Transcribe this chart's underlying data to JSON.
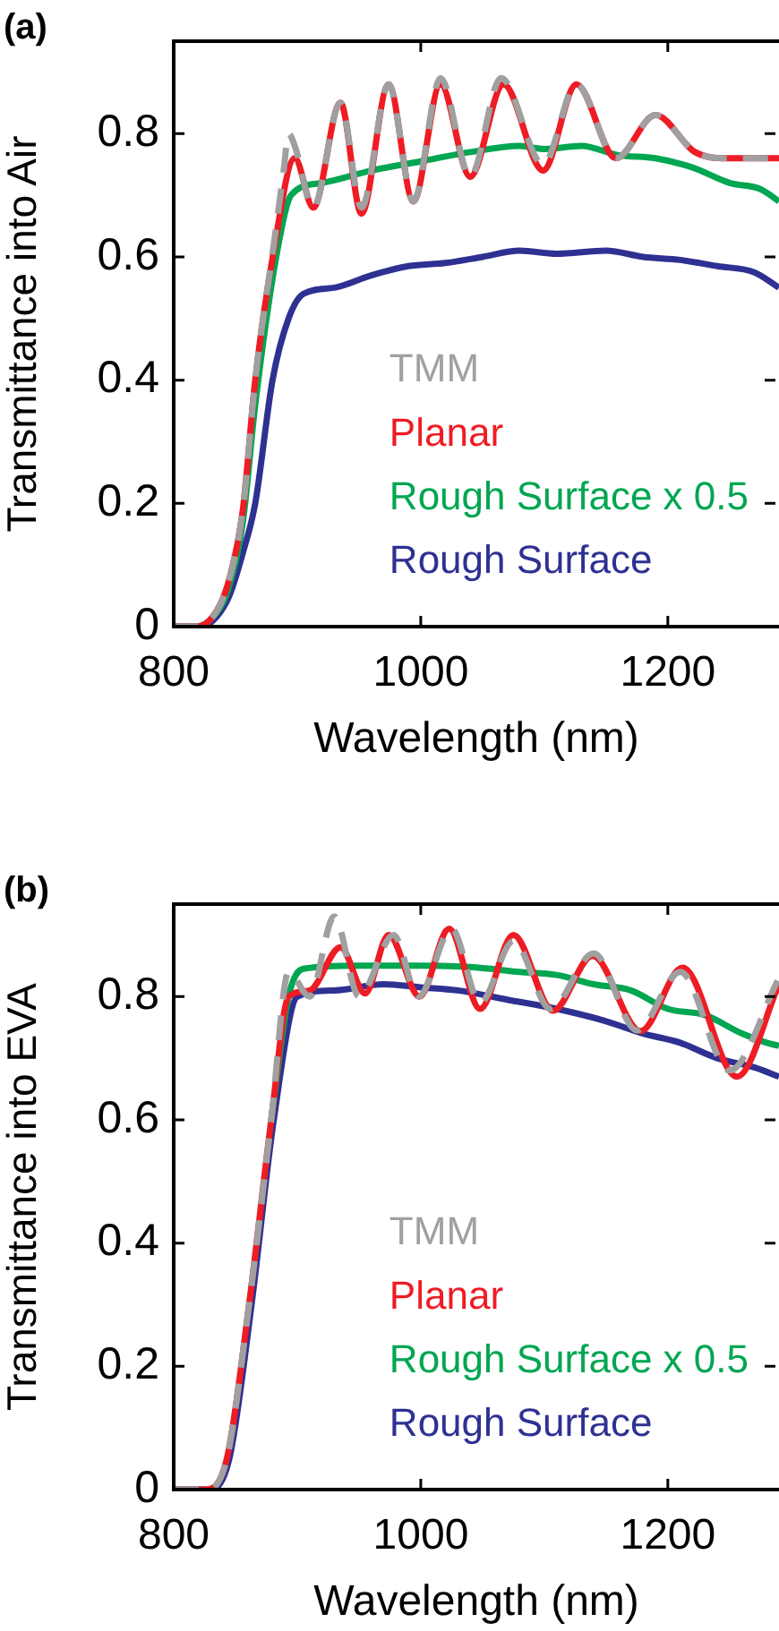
{
  "chart_data": [
    {
      "type": "line",
      "title": "(a)",
      "xlabel": "Wavelength (nm)",
      "ylabel": "Transmittance into Air",
      "xlim": [
        800,
        1290
      ],
      "ylim": [
        0,
        0.95
      ],
      "xticks": [
        800,
        1000,
        1200
      ],
      "yticks": [
        0,
        0.2,
        0.4,
        0.6,
        0.8
      ],
      "grid": false,
      "legend": "bottom right",
      "marker": "none",
      "series": [
        {
          "name": "TMM",
          "color": "#a0a0a0",
          "line_style": "dashed",
          "x": [
            800,
            815,
            829,
            844,
            856,
            866,
            881,
            889,
            893,
            898,
            913,
            935,
            952,
            974,
            994,
            1016,
            1040,
            1065,
            1099,
            1126,
            1158,
            1190,
            1222,
            1247,
            1290
          ],
          "values": [
            0,
            0,
            0.01,
            0.07,
            0.19,
            0.4,
            0.62,
            0.74,
            0.8,
            0.78,
            0.68,
            0.85,
            0.68,
            0.88,
            0.69,
            0.89,
            0.73,
            0.89,
            0.75,
            0.88,
            0.76,
            0.83,
            0.77,
            0.76,
            0.76
          ]
        },
        {
          "name": "Planar",
          "color": "#ee1c24",
          "line_style": "solid",
          "x": [
            800,
            815,
            829,
            844,
            856,
            866,
            881,
            898,
            913,
            935,
            952,
            974,
            994,
            1016,
            1040,
            1067,
            1099,
            1126,
            1158,
            1190,
            1222,
            1247,
            1290
          ],
          "values": [
            0,
            0,
            0.01,
            0.07,
            0.19,
            0.4,
            0.61,
            0.76,
            0.68,
            0.85,
            0.67,
            0.88,
            0.69,
            0.88,
            0.73,
            0.88,
            0.74,
            0.88,
            0.76,
            0.83,
            0.77,
            0.76,
            0.76
          ]
        },
        {
          "name": "Rough Surface x 0.5",
          "color": "#00a651",
          "line_style": "solid",
          "x": [
            800,
            815,
            829,
            844,
            856,
            866,
            883,
            895,
            920,
            960,
            1000,
            1040,
            1080,
            1100,
            1130,
            1160,
            1190,
            1220,
            1250,
            1275,
            1290
          ],
          "values": [
            0,
            0,
            0.01,
            0.06,
            0.17,
            0.36,
            0.6,
            0.7,
            0.72,
            0.74,
            0.755,
            0.77,
            0.78,
            0.775,
            0.78,
            0.765,
            0.76,
            0.745,
            0.72,
            0.71,
            0.69
          ]
        },
        {
          "name": "Rough Surface",
          "color": "#2e3192",
          "line_style": "solid",
          "x": [
            800,
            820,
            832,
            845,
            856,
            866,
            880,
            893,
            905,
            930,
            960,
            990,
            1020,
            1050,
            1080,
            1110,
            1150,
            1180,
            1210,
            1240,
            1270,
            1290
          ],
          "values": [
            0,
            0,
            0.01,
            0.05,
            0.12,
            0.2,
            0.4,
            0.5,
            0.54,
            0.55,
            0.57,
            0.585,
            0.59,
            0.6,
            0.61,
            0.605,
            0.61,
            0.6,
            0.595,
            0.585,
            0.575,
            0.55
          ]
        }
      ]
    },
    {
      "type": "line",
      "title": "(b)",
      "xlabel": "Wavelength (nm)",
      "ylabel": "Transmittance into EVA",
      "xlim": [
        800,
        1290
      ],
      "ylim": [
        0,
        0.95
      ],
      "xticks": [
        800,
        1000,
        1200
      ],
      "yticks": [
        0,
        0.2,
        0.4,
        0.6,
        0.8
      ],
      "grid": false,
      "legend": "bottom right",
      "marker": "none",
      "series": [
        {
          "name": "TMM",
          "color": "#a0a0a0",
          "line_style": "dashed",
          "x": [
            800,
            825,
            843,
            861,
            879,
            893,
            910,
            930,
            950,
            978,
            998,
            1025,
            1048,
            1075,
            1105,
            1140,
            1175,
            1210,
            1250,
            1290
          ],
          "values": [
            0,
            0,
            0.05,
            0.3,
            0.6,
            0.84,
            0.8,
            0.93,
            0.8,
            0.9,
            0.8,
            0.91,
            0.79,
            0.89,
            0.78,
            0.87,
            0.745,
            0.84,
            0.68,
            0.83
          ]
        },
        {
          "name": "Planar",
          "color": "#ee1c24",
          "line_style": "solid",
          "x": [
            800,
            825,
            843,
            861,
            879,
            893,
            910,
            935,
            955,
            974,
            999,
            1023,
            1048,
            1075,
            1107,
            1139,
            1178,
            1212,
            1256,
            1290
          ],
          "values": [
            0,
            0,
            0.05,
            0.3,
            0.6,
            0.8,
            0.81,
            0.88,
            0.805,
            0.9,
            0.8,
            0.91,
            0.78,
            0.9,
            0.777,
            0.866,
            0.744,
            0.847,
            0.67,
            0.82
          ]
        },
        {
          "name": "Rough Surface x 0.5",
          "color": "#00a651",
          "line_style": "solid",
          "x": [
            879,
            893,
            905,
            950,
            1000,
            1040,
            1080,
            1110,
            1140,
            1170,
            1200,
            1230,
            1260,
            1280,
            1290
          ],
          "values": [
            0.6,
            0.8,
            0.845,
            0.85,
            0.85,
            0.848,
            0.84,
            0.835,
            0.82,
            0.81,
            0.78,
            0.77,
            0.74,
            0.725,
            0.72
          ]
        },
        {
          "name": "Rough Surface",
          "color": "#2e3192",
          "line_style": "solid",
          "x": [
            800,
            828,
            845,
            863,
            881,
            900,
            930,
            970,
            1000,
            1030,
            1070,
            1110,
            1150,
            1180,
            1210,
            1240,
            1270,
            1290
          ],
          "values": [
            0,
            0,
            0.05,
            0.3,
            0.6,
            0.8,
            0.81,
            0.82,
            0.815,
            0.81,
            0.795,
            0.78,
            0.76,
            0.74,
            0.725,
            0.7,
            0.685,
            0.67
          ]
        }
      ]
    }
  ]
}
